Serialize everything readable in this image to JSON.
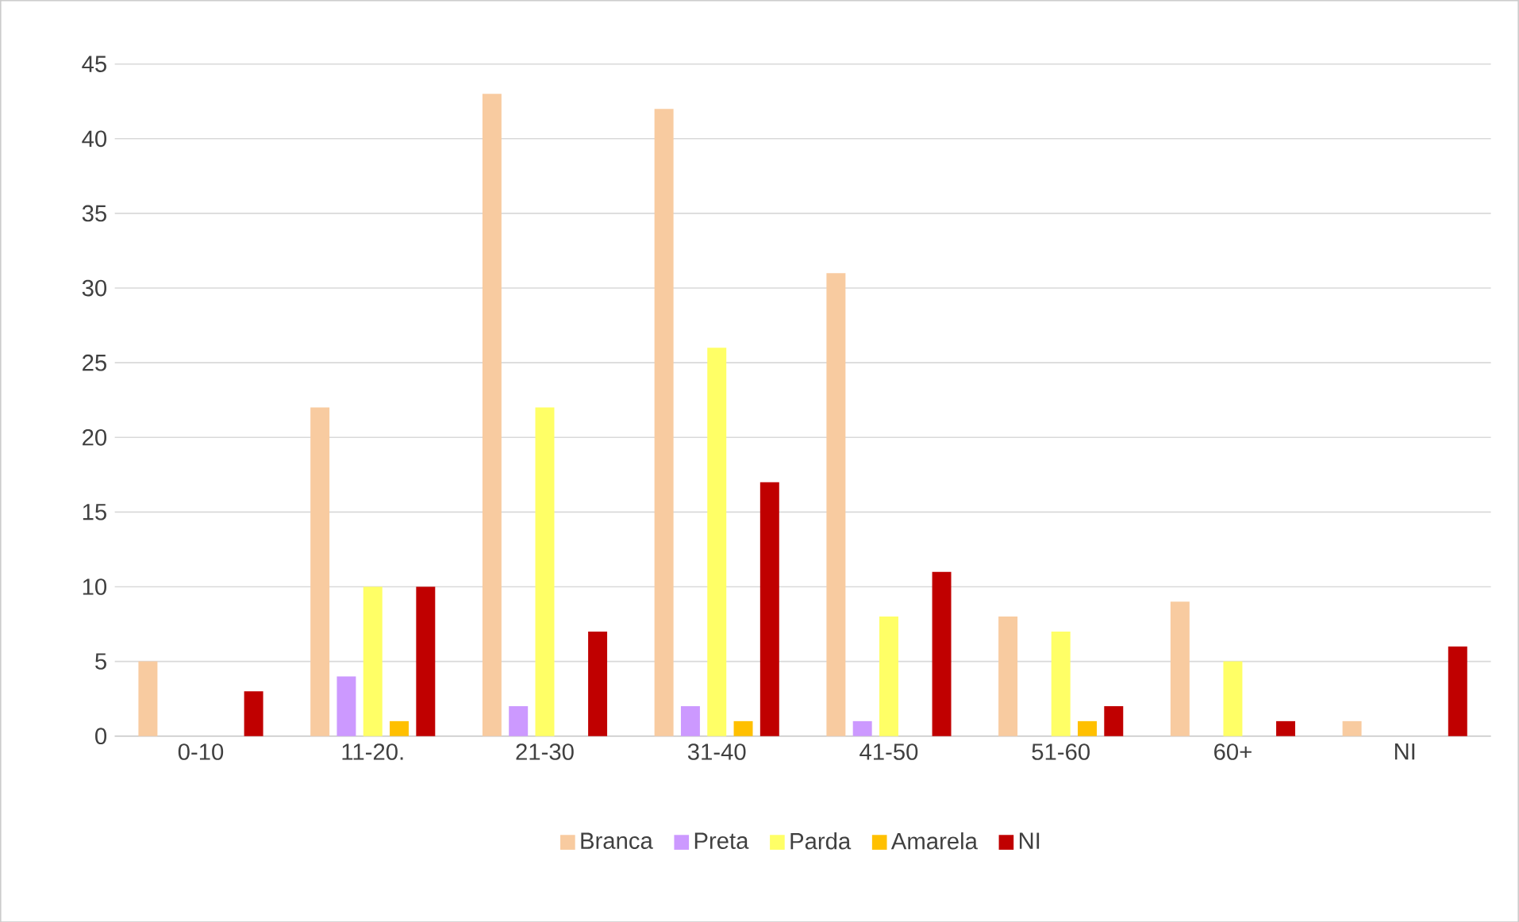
{
  "chart_data": {
    "type": "bar",
    "categories": [
      "0-10",
      "11-20.",
      "21-30",
      "31-40",
      "41-50",
      "51-60",
      "60+",
      "NI"
    ],
    "series": [
      {
        "name": "Branca",
        "color": "#f8cba0",
        "values": [
          5,
          22,
          43,
          42,
          31,
          8,
          9,
          1
        ]
      },
      {
        "name": "Preta",
        "color": "#cc99ff",
        "values": [
          0,
          4,
          2,
          2,
          1,
          0,
          0,
          0
        ]
      },
      {
        "name": "Parda",
        "color": "#ffff66",
        "values": [
          0,
          10,
          22,
          26,
          8,
          7,
          5,
          0
        ]
      },
      {
        "name": "Amarela",
        "color": "#ffc000",
        "values": [
          0,
          1,
          0,
          1,
          0,
          1,
          0,
          0
        ]
      },
      {
        "name": "NI",
        "color": "#c00000",
        "values": [
          3,
          10,
          7,
          17,
          11,
          2,
          1,
          6
        ]
      }
    ],
    "ylim": [
      0,
      45
    ],
    "yticks": [
      0,
      5,
      10,
      15,
      20,
      25,
      30,
      35,
      40,
      45
    ],
    "grid": "y",
    "legend": "bottom"
  }
}
